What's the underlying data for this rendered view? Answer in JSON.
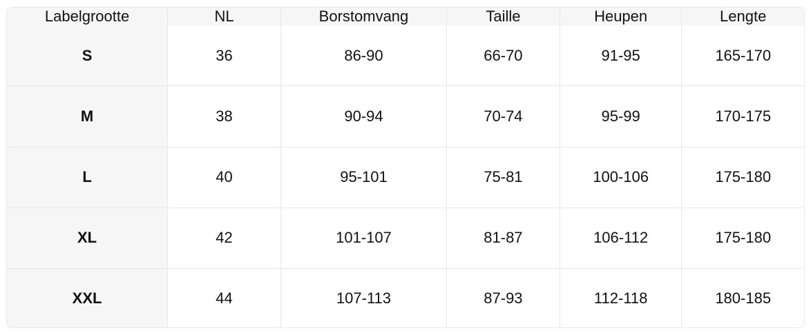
{
  "table": {
    "headers": [
      "Labelgrootte",
      "NL",
      "Borstomvang",
      "Taille",
      "Heupen",
      "Lengte"
    ],
    "rows": [
      [
        "S",
        "36",
        "86-90",
        "66-70",
        "91-95",
        "165-170"
      ],
      [
        "M",
        "38",
        "90-94",
        "70-74",
        "95-99",
        "170-175"
      ],
      [
        "L",
        "40",
        "95-101",
        "75-81",
        "100-106",
        "175-180"
      ],
      [
        "XL",
        "42",
        "101-107",
        "81-87",
        "106-112",
        "175-180"
      ],
      [
        "XXL",
        "44",
        "107-113",
        "87-93",
        "112-118",
        "180-185"
      ]
    ],
    "colors": {
      "header_background": "#f6f6f6",
      "label_column_background": "#f6f6f6",
      "grid_border": "#e8e8e8",
      "text": "#111111",
      "cell_background": "#ffffff"
    }
  }
}
